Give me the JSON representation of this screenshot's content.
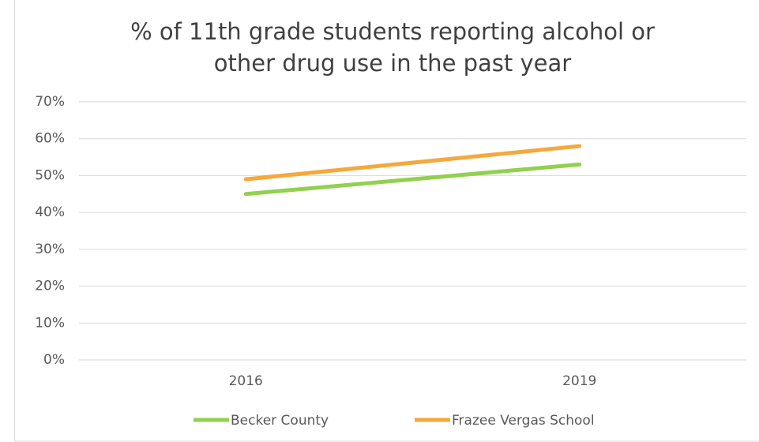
{
  "chart_data": {
    "type": "line",
    "title": [
      "% of 11th grade students reporting alcohol or",
      "other drug use in the past year"
    ],
    "categories": [
      "2016",
      "2019"
    ],
    "series": [
      {
        "name": "Becker County",
        "color": "#92d050",
        "values": [
          45,
          53
        ]
      },
      {
        "name": "Frazee Vergas School",
        "color": "#f5a83b",
        "values": [
          49,
          58
        ]
      }
    ],
    "ylim": [
      0,
      70
    ],
    "yticks": [
      {
        "value": 0,
        "label": "0%"
      },
      {
        "value": 10,
        "label": "10%"
      },
      {
        "value": 20,
        "label": "20%"
      },
      {
        "value": 30,
        "label": "30%"
      },
      {
        "value": 40,
        "label": "40%"
      },
      {
        "value": 50,
        "label": "50%"
      },
      {
        "value": 60,
        "label": "60%"
      },
      {
        "value": 70,
        "label": "70%"
      }
    ],
    "grid": true,
    "legend": "bottom"
  }
}
